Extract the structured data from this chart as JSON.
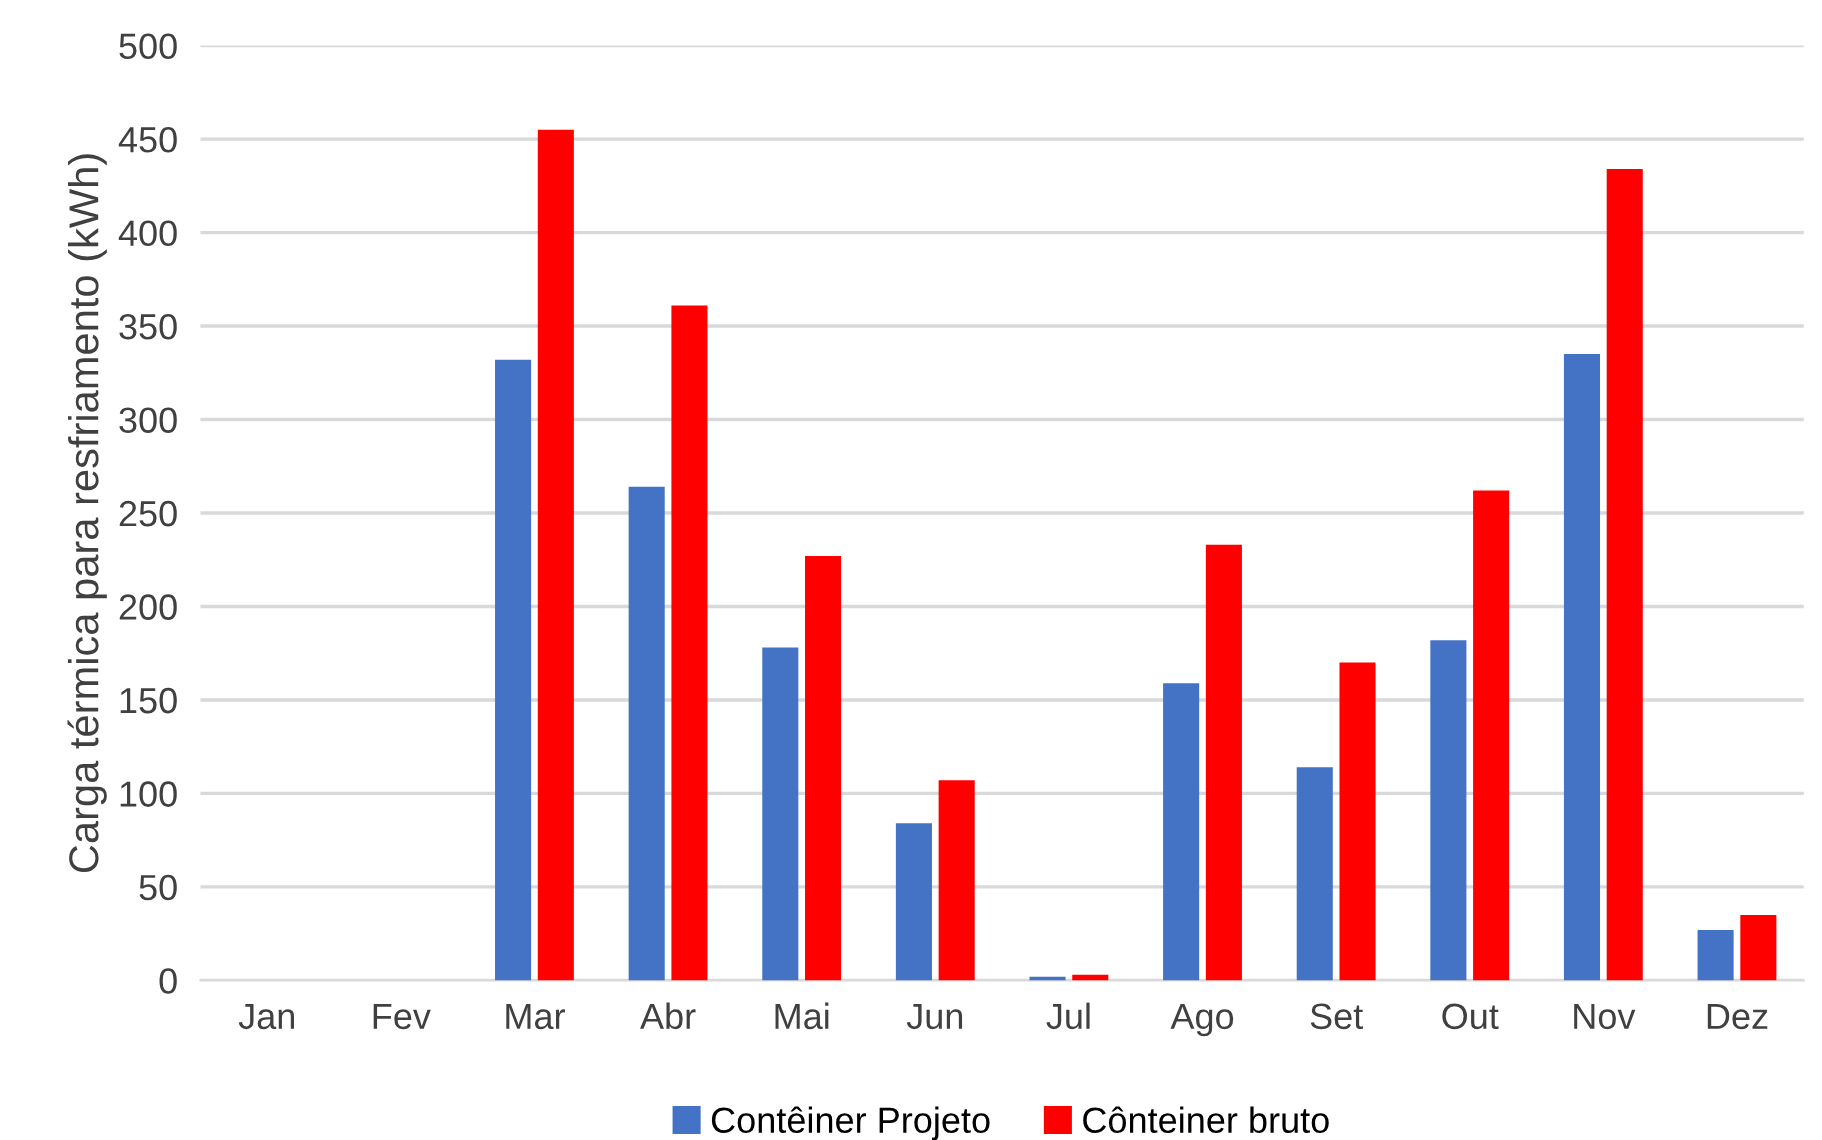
{
  "chart_data": {
    "type": "bar",
    "ylabel": "Carga térmica para resfriamento (kWh)",
    "categories": [
      "Jan",
      "Fev",
      "Mar",
      "Abr",
      "Mai",
      "Jun",
      "Jul",
      "Ago",
      "Set",
      "Out",
      "Nov",
      "Dez"
    ],
    "series": [
      {
        "name": "Contêiner Projeto",
        "color": "#4472c4",
        "values": [
          0,
          0,
          332,
          264,
          178,
          84,
          2,
          159,
          114,
          182,
          335,
          27
        ]
      },
      {
        "name": "Cônteiner bruto",
        "color": "#ff0000",
        "values": [
          0,
          0,
          455,
          361,
          227,
          107,
          3,
          233,
          170,
          262,
          434,
          35
        ]
      }
    ],
    "ylim": [
      0,
      500
    ],
    "yticks": [
      0,
      50,
      100,
      150,
      200,
      250,
      300,
      350,
      400,
      450,
      500
    ],
    "grid": "y",
    "legend": "bottom"
  }
}
